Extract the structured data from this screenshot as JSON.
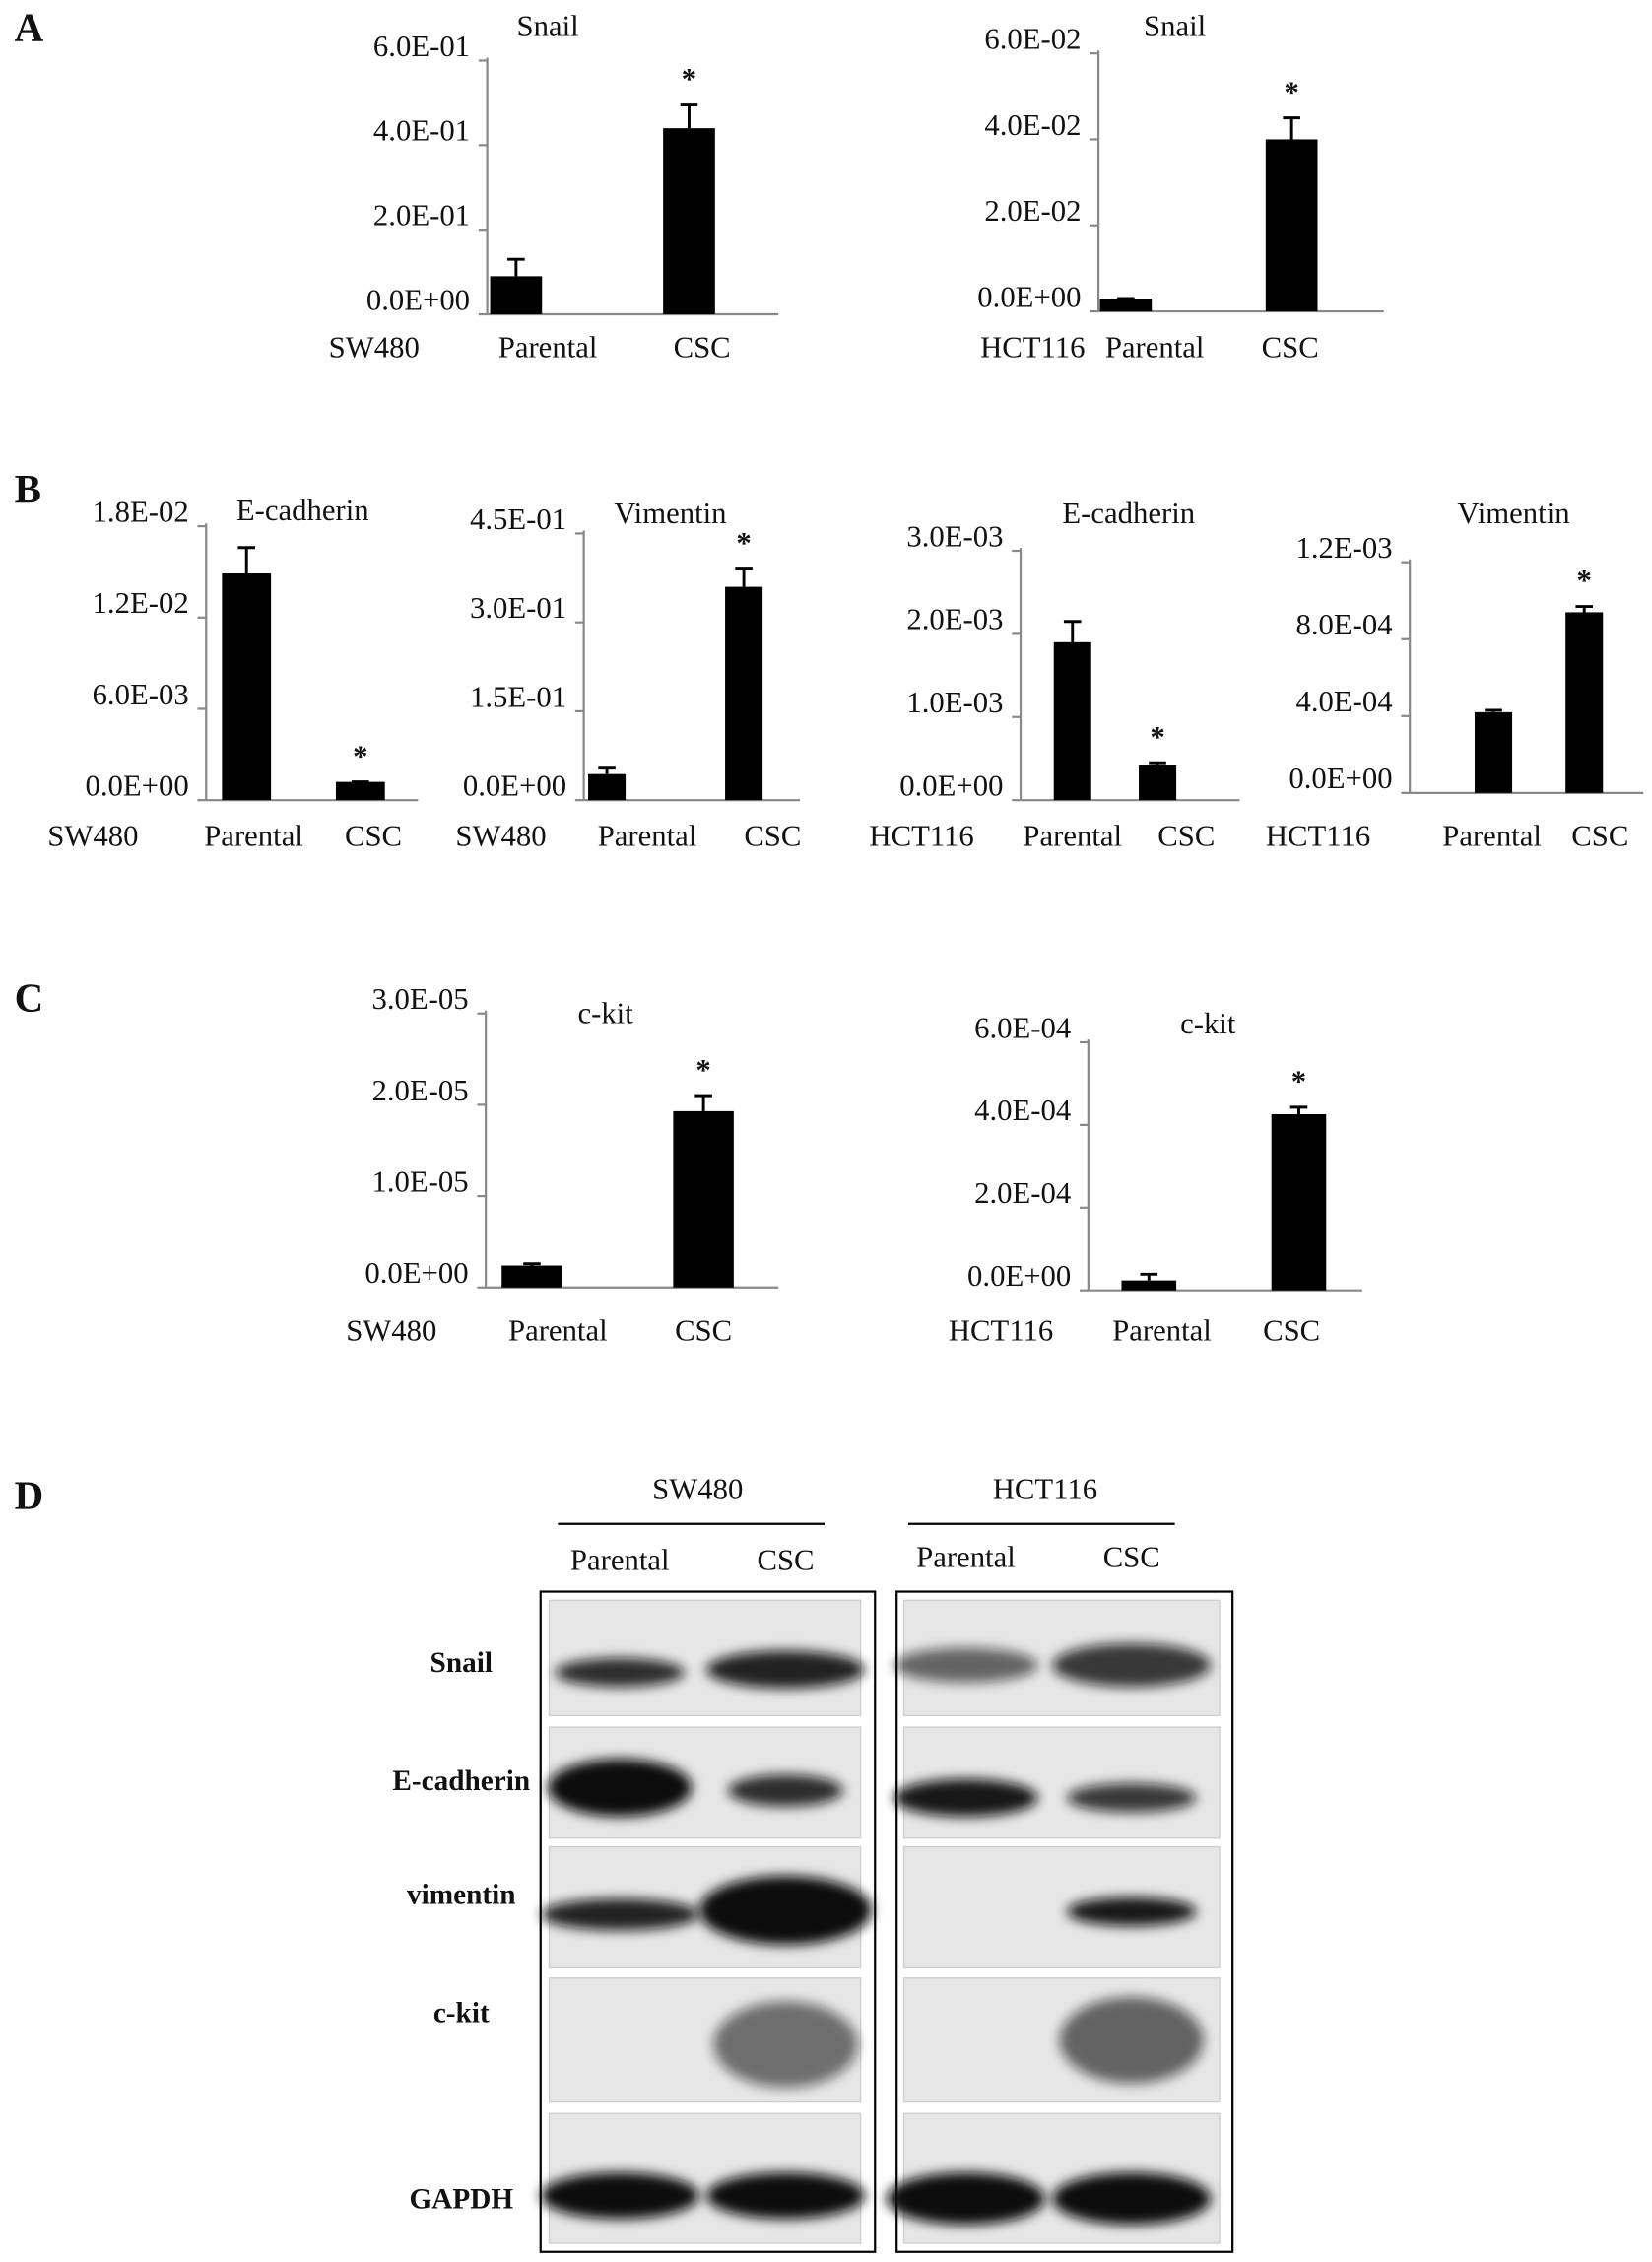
{
  "panel_labels": [
    "A",
    "B",
    "C",
    "D"
  ],
  "chart_data": [
    {
      "type": "bar",
      "title": "Snail",
      "cell_line": "SW480",
      "categories": [
        "Parental",
        "CSC"
      ],
      "values": [
        0.09,
        0.44
      ],
      "errors": [
        0.04,
        0.055
      ],
      "significance": [
        null,
        "*"
      ],
      "color": "#000000",
      "ylim": [
        0,
        0.6
      ],
      "yticks": [
        {
          "value": 0,
          "label": "0.0E+00"
        },
        {
          "value": 0.2,
          "label": "2.0E-01"
        },
        {
          "value": 0.4,
          "label": "4.0E-01"
        },
        {
          "value": 0.6,
          "label": "6.0E-01"
        }
      ]
    },
    {
      "type": "bar",
      "title": "Snail",
      "cell_line": "HCT116",
      "categories": [
        "Parental",
        "CSC"
      ],
      "values": [
        0.003,
        0.04
      ],
      "errors": [
        0,
        0.005
      ],
      "significance": [
        null,
        "*"
      ],
      "color": "#000000",
      "ylim": [
        0,
        0.06
      ],
      "yticks": [
        {
          "value": 0,
          "label": "0.0E+00"
        },
        {
          "value": 0.02,
          "label": "2.0E-02"
        },
        {
          "value": 0.04,
          "label": "4.0E-02"
        },
        {
          "value": 0.06,
          "label": "6.0E-02"
        }
      ]
    },
    {
      "type": "bar",
      "title": "E-cadherin",
      "cell_line": "SW480",
      "categories": [
        "Parental",
        "CSC"
      ],
      "values": [
        0.0149,
        0.0012
      ],
      "errors": [
        0.0017,
        0
      ],
      "significance": [
        null,
        "*"
      ],
      "color": "#000000",
      "ylim": [
        0,
        0.018
      ],
      "yticks": [
        {
          "value": 0,
          "label": "0.0E+00"
        },
        {
          "value": 0.006,
          "label": "6.0E-03"
        },
        {
          "value": 0.012,
          "label": "1.2E-02"
        },
        {
          "value": 0.018,
          "label": "1.8E-02"
        }
      ]
    },
    {
      "type": "bar",
      "title": "Vimentin",
      "cell_line": "SW480",
      "categories": [
        "Parental",
        "CSC"
      ],
      "values": [
        0.044,
        0.36
      ],
      "errors": [
        0.01,
        0.03
      ],
      "significance": [
        null,
        "*"
      ],
      "color": "#000000",
      "ylim": [
        0,
        0.45
      ],
      "yticks": [
        {
          "value": 0,
          "label": "0.0E+00"
        },
        {
          "value": 0.15,
          "label": "1.5E-01"
        },
        {
          "value": 0.3,
          "label": "3.0E-01"
        },
        {
          "value": 0.45,
          "label": "4.5E-01"
        }
      ]
    },
    {
      "type": "bar",
      "title": "E-cadherin",
      "cell_line": "HCT116",
      "categories": [
        "Parental",
        "CSC"
      ],
      "values": [
        0.0019,
        0.00042
      ],
      "errors": [
        0.00025,
        3e-05
      ],
      "significance": [
        null,
        "*"
      ],
      "color": "#000000",
      "ylim": [
        0,
        0.003
      ],
      "yticks": [
        {
          "value": 0,
          "label": "0.0E+00"
        },
        {
          "value": 0.001,
          "label": "1.0E-03"
        },
        {
          "value": 0.002,
          "label": "2.0E-03"
        },
        {
          "value": 0.003,
          "label": "3.0E-03"
        }
      ]
    },
    {
      "type": "bar",
      "title": "Vimentin",
      "cell_line": "HCT116",
      "categories": [
        "Parental",
        "CSC"
      ],
      "values": [
        0.00042,
        0.00094
      ],
      "errors": [
        1e-05,
        3e-05
      ],
      "significance": [
        null,
        "*"
      ],
      "color": "#000000",
      "ylim": [
        0,
        0.0012
      ],
      "yticks": [
        {
          "value": 0,
          "label": "0.0E+00"
        },
        {
          "value": 0.0004,
          "label": "4.0E-04"
        },
        {
          "value": 0.0008,
          "label": "8.0E-04"
        },
        {
          "value": 0.0012,
          "label": "1.2E-03"
        }
      ]
    },
    {
      "type": "bar",
      "title": "c-kit",
      "cell_line": "SW480",
      "categories": [
        "Parental",
        "CSC"
      ],
      "values": [
        2.4e-06,
        1.93e-05
      ],
      "errors": [
        2e-07,
        1.7e-06
      ],
      "significance": [
        null,
        "*"
      ],
      "color": "#000000",
      "ylim": [
        0,
        3e-05
      ],
      "yticks": [
        {
          "value": 0,
          "label": "0.0E+00"
        },
        {
          "value": 1e-05,
          "label": "1.0E-05"
        },
        {
          "value": 2e-05,
          "label": "2.0E-05"
        },
        {
          "value": 3e-05,
          "label": "3.0E-05"
        }
      ]
    },
    {
      "type": "bar",
      "title": "c-kit",
      "cell_line": "HCT116",
      "categories": [
        "Parental",
        "CSC"
      ],
      "values": [
        2.4e-05,
        0.000426
      ],
      "errors": [
        1.5e-05,
        1.7e-05
      ],
      "significance": [
        null,
        "*"
      ],
      "color": "#000000",
      "ylim": [
        0,
        0.0006
      ],
      "yticks": [
        {
          "value": 0,
          "label": "0.0E+00"
        },
        {
          "value": 0.0002,
          "label": "2.0E-04"
        },
        {
          "value": 0.0004,
          "label": "4.0E-04"
        },
        {
          "value": 0.0006,
          "label": "6.0E-04"
        }
      ]
    }
  ],
  "blot": {
    "groups": [
      {
        "name": "SW480",
        "lanes": [
          "Parental",
          "CSC"
        ]
      },
      {
        "name": "HCT116",
        "lanes": [
          "Parental",
          "CSC"
        ]
      }
    ],
    "rows": [
      "Snail",
      "E-cadherin",
      "vimentin",
      "c-kit",
      "GAPDH"
    ]
  }
}
